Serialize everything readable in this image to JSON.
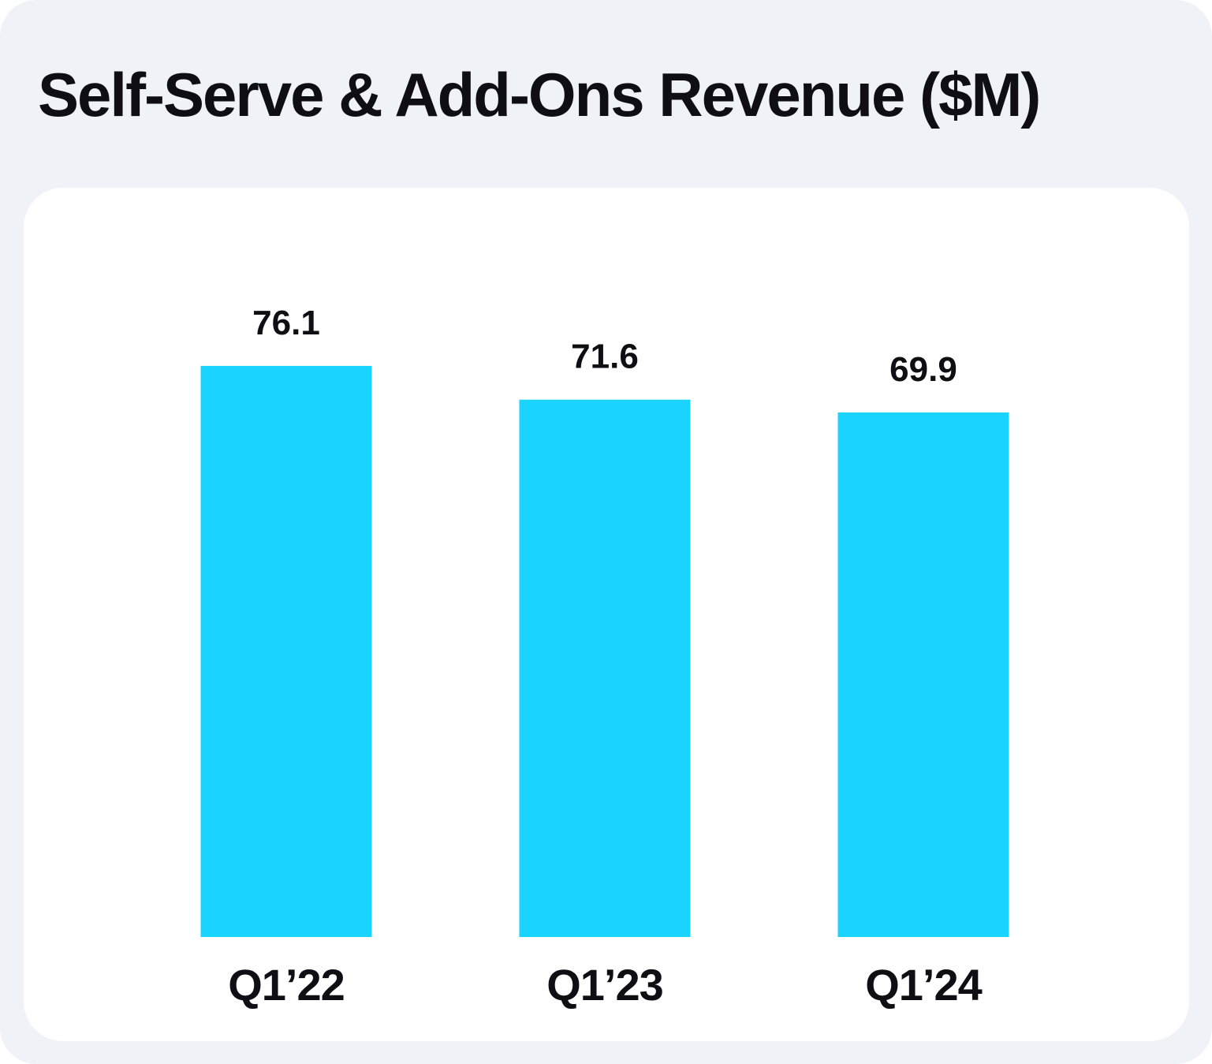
{
  "chart_data": {
    "type": "bar",
    "title": "Self-Serve & Add-Ons Revenue ($M)",
    "categories": [
      "Q1’22",
      "Q1’23",
      "Q1’24"
    ],
    "values": [
      76.1,
      71.6,
      69.9
    ],
    "value_labels": [
      "76.1",
      "71.6",
      "69.9"
    ],
    "xlabel": "",
    "ylabel": "",
    "ylim": [
      0,
      100
    ],
    "grid": false,
    "bar_color": "#1ad4ff"
  },
  "colors": {
    "background": "#eff3f8",
    "panel": "#ffffff",
    "text": "#0e0e14",
    "bar": "#1ad4ff"
  }
}
